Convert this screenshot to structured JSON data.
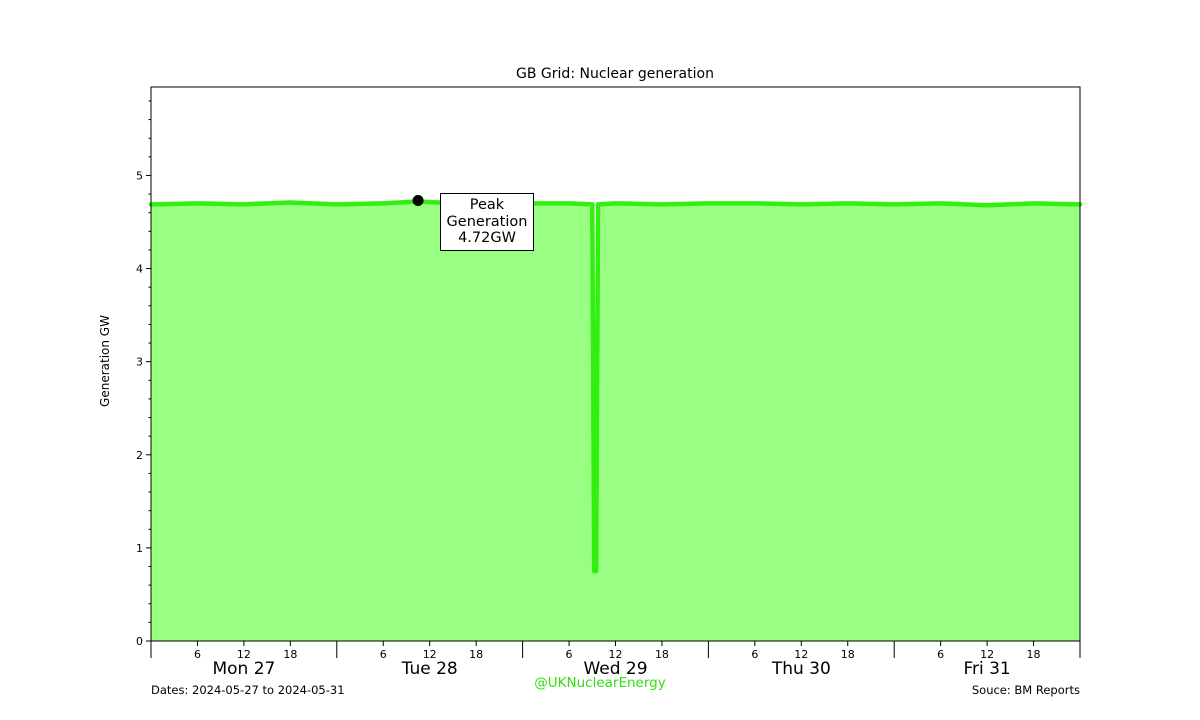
{
  "chart_data": {
    "type": "area",
    "title": "GB Grid: Nuclear generation",
    "xlabel": "",
    "ylabel": "Generation GW",
    "ylim": [
      0,
      5.95
    ],
    "yticks": [
      0,
      1,
      2,
      3,
      4,
      5
    ],
    "xlim": [
      "2024-05-27T00:00",
      "2024-06-01T00:00"
    ],
    "day_labels": [
      "Mon 27",
      "Tue 28",
      "Wed 29",
      "Thu 30",
      "Fri 31"
    ],
    "hour_ticks": [
      6,
      12,
      18
    ],
    "grid": false,
    "legend": "none",
    "series": [
      {
        "x": [
          "2024-05-27T00:00",
          "2024-05-27T06:00",
          "2024-05-27T12:00",
          "2024-05-27T18:00",
          "2024-05-28T00:00",
          "2024-05-28T06:00",
          "2024-05-28T10:30",
          "2024-05-28T18:00",
          "2024-05-29T00:00",
          "2024-05-29T06:00",
          "2024-05-29T09:00",
          "2024-05-29T09:15",
          "2024-05-29T09:30",
          "2024-05-29T09:45",
          "2024-05-29T12:00",
          "2024-05-29T18:00",
          "2024-05-30T00:00",
          "2024-05-30T06:00",
          "2024-05-30T12:00",
          "2024-05-30T18:00",
          "2024-05-31T00:00",
          "2024-05-31T06:00",
          "2024-05-31T12:00",
          "2024-05-31T18:00",
          "2024-06-01T00:00"
        ],
        "y": [
          4.69,
          4.7,
          4.69,
          4.71,
          4.69,
          4.7,
          4.72,
          4.69,
          4.7,
          4.7,
          4.69,
          0.75,
          0.75,
          4.69,
          4.7,
          4.69,
          4.7,
          4.7,
          4.69,
          4.7,
          4.69,
          4.7,
          4.68,
          4.7,
          4.69
        ]
      }
    ],
    "annotations": [
      {
        "text": "Peak\nGeneration\n4.72GW",
        "x": "2024-05-28T10:30",
        "y": 4.72
      }
    ],
    "colors": {
      "fill": "#99ff82",
      "line": "#33ee11",
      "marker": "#000000"
    }
  },
  "footer": {
    "dates": "Dates: 2024-05-27 to 2024-05-31",
    "source": "Souce: BM Reports",
    "watermark": "@UKNuclearEnergy",
    "watermark_color": "#33dd11"
  }
}
